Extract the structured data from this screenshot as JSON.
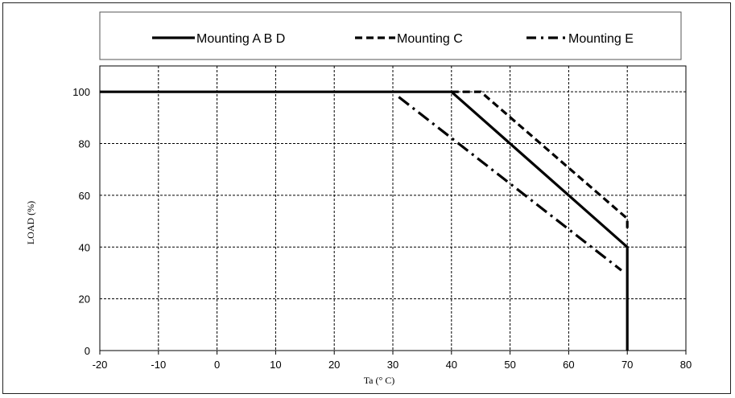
{
  "chart_data": {
    "type": "line",
    "xlabel": "Ta (° C)",
    "ylabel": "LOAD (%)",
    "xlim": [
      -20,
      80
    ],
    "ylim": [
      0,
      110
    ],
    "x_ticks": [
      -20,
      -10,
      0,
      10,
      20,
      30,
      40,
      50,
      60,
      70,
      80
    ],
    "y_ticks": [
      0,
      20,
      40,
      60,
      80,
      100
    ],
    "grid": true,
    "legend_position": "top",
    "series": [
      {
        "name": "Mounting A B D",
        "style": "solid",
        "color": "#000000",
        "points": [
          [
            -20,
            100
          ],
          [
            40,
            100
          ],
          [
            70,
            40
          ],
          [
            70,
            0
          ]
        ]
      },
      {
        "name": "Mounting C",
        "style": "dashed",
        "color": "#000000",
        "points": [
          [
            40,
            100
          ],
          [
            45,
            100
          ],
          [
            70,
            51
          ],
          [
            70,
            47
          ]
        ]
      },
      {
        "name": "Mounting E",
        "style": "dash-dot",
        "color": "#000000",
        "points": [
          [
            31,
            98
          ],
          [
            69,
            31
          ]
        ]
      }
    ]
  }
}
